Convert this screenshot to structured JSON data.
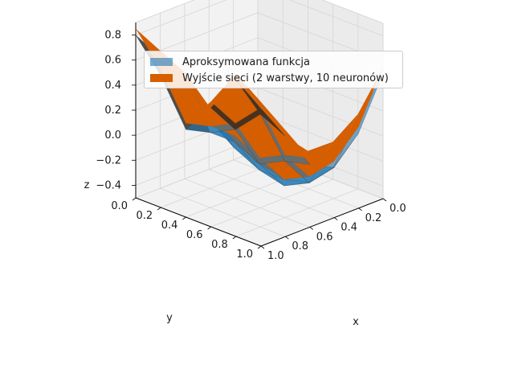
{
  "chart_data": {
    "type": "surface3d",
    "title": "",
    "xlabel": "x",
    "ylabel": "y",
    "zlabel": "z",
    "x": [
      0.0,
      0.2,
      0.4,
      0.6,
      0.8,
      1.0
    ],
    "y": [
      0.0,
      0.2,
      0.4,
      0.6,
      0.8,
      1.0
    ],
    "xticks": [
      "0.0",
      "0.2",
      "0.4",
      "0.6",
      "0.8",
      "1.0"
    ],
    "yticks": [
      "0.0",
      "0.2",
      "0.4",
      "0.6",
      "0.8",
      "1.0"
    ],
    "zticks": [
      "−0.4",
      "−0.2",
      "0.0",
      "0.2",
      "0.4",
      "0.6",
      "0.8"
    ],
    "xlim": [
      0,
      1
    ],
    "ylim": [
      0,
      1
    ],
    "zlim": [
      -0.5,
      0.9
    ],
    "grid": true,
    "legend_position": "top-center",
    "series": [
      {
        "name": "Aproksymowana funkcja",
        "color": "#1f77b4",
        "alpha": 0.6,
        "z": [
          [
            0.8,
            0.55,
            0.2,
            -0.1,
            -0.3,
            -0.25
          ],
          [
            0.55,
            0.45,
            0.1,
            -0.25,
            -0.45,
            -0.35
          ],
          [
            0.2,
            0.1,
            -0.05,
            -0.35,
            -0.5,
            -0.4
          ],
          [
            0.45,
            0.2,
            -0.15,
            -0.4,
            -0.45,
            -0.25
          ],
          [
            0.75,
            0.4,
            -0.05,
            -0.3,
            -0.25,
            0.05
          ],
          [
            0.6,
            0.3,
            0.0,
            -0.1,
            0.1,
            0.5
          ]
        ]
      },
      {
        "name": "Wyjście sieci (2 warstwy, 10 neuronów)",
        "color": "#d55e00",
        "alpha": 0.95,
        "z": [
          [
            0.85,
            0.6,
            0.25,
            -0.05,
            -0.25,
            -0.2
          ],
          [
            0.6,
            0.5,
            0.15,
            -0.2,
            -0.4,
            -0.3
          ],
          [
            0.25,
            0.15,
            0.0,
            -0.3,
            -0.45,
            -0.35
          ],
          [
            0.5,
            0.25,
            -0.1,
            -0.35,
            -0.4,
            -0.2
          ],
          [
            0.8,
            0.45,
            0.0,
            -0.25,
            -0.2,
            0.1
          ],
          [
            0.65,
            0.35,
            0.05,
            -0.05,
            0.15,
            0.55
          ]
        ]
      }
    ]
  }
}
